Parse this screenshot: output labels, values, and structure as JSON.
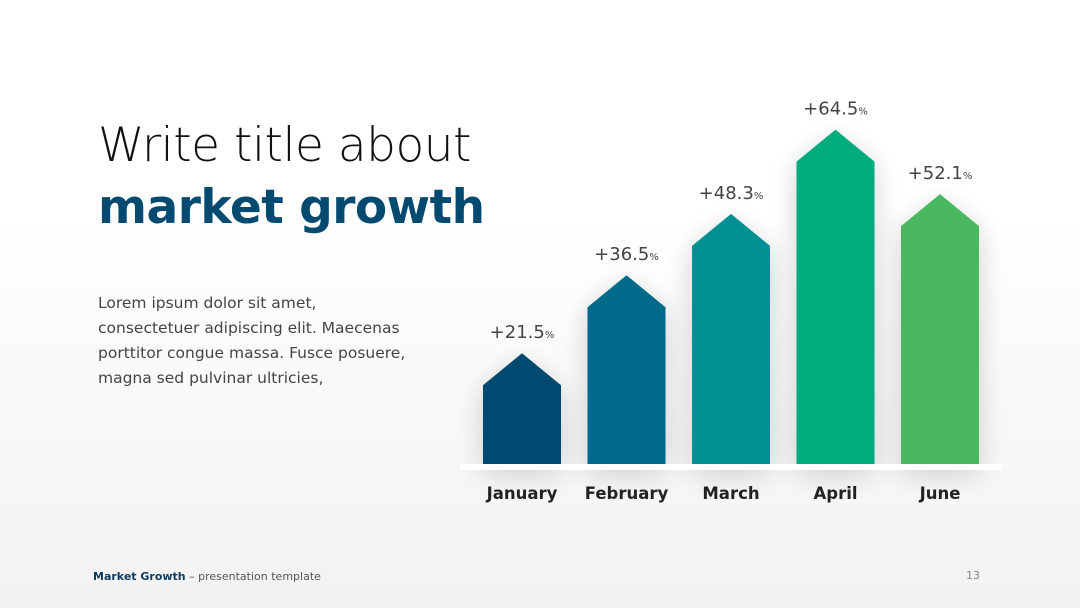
{
  "slide": {
    "title_line1": "Write title about",
    "title_line2": "market growth",
    "body": "Lorem ipsum dolor sit amet, consectetuer adipiscing elit. Maecenas porttitor congue massa. Fusce posuere, magna sed pulvinar ultricies,",
    "footer_brand": "Market Growth",
    "footer_rest": " – presentation template",
    "page_number": "13"
  },
  "colors": {
    "title_accent": "#024a70",
    "bars": [
      "#024a70",
      "#026a8a",
      "#018f92",
      "#03ac7c",
      "#4ab85f"
    ],
    "baseline": "#ffffff"
  },
  "chart_data": {
    "type": "bar",
    "categories": [
      "January",
      "February",
      "March",
      "April",
      "June"
    ],
    "values": [
      21.5,
      36.5,
      48.3,
      64.5,
      52.1
    ],
    "labels": [
      "+21.5",
      "+36.5",
      "+48.3",
      "+64.5",
      "+52.1"
    ],
    "label_suffix": "%",
    "bar_shape": "arrow-up",
    "ylim": [
      0,
      70
    ],
    "grid": false,
    "legend": "none"
  }
}
